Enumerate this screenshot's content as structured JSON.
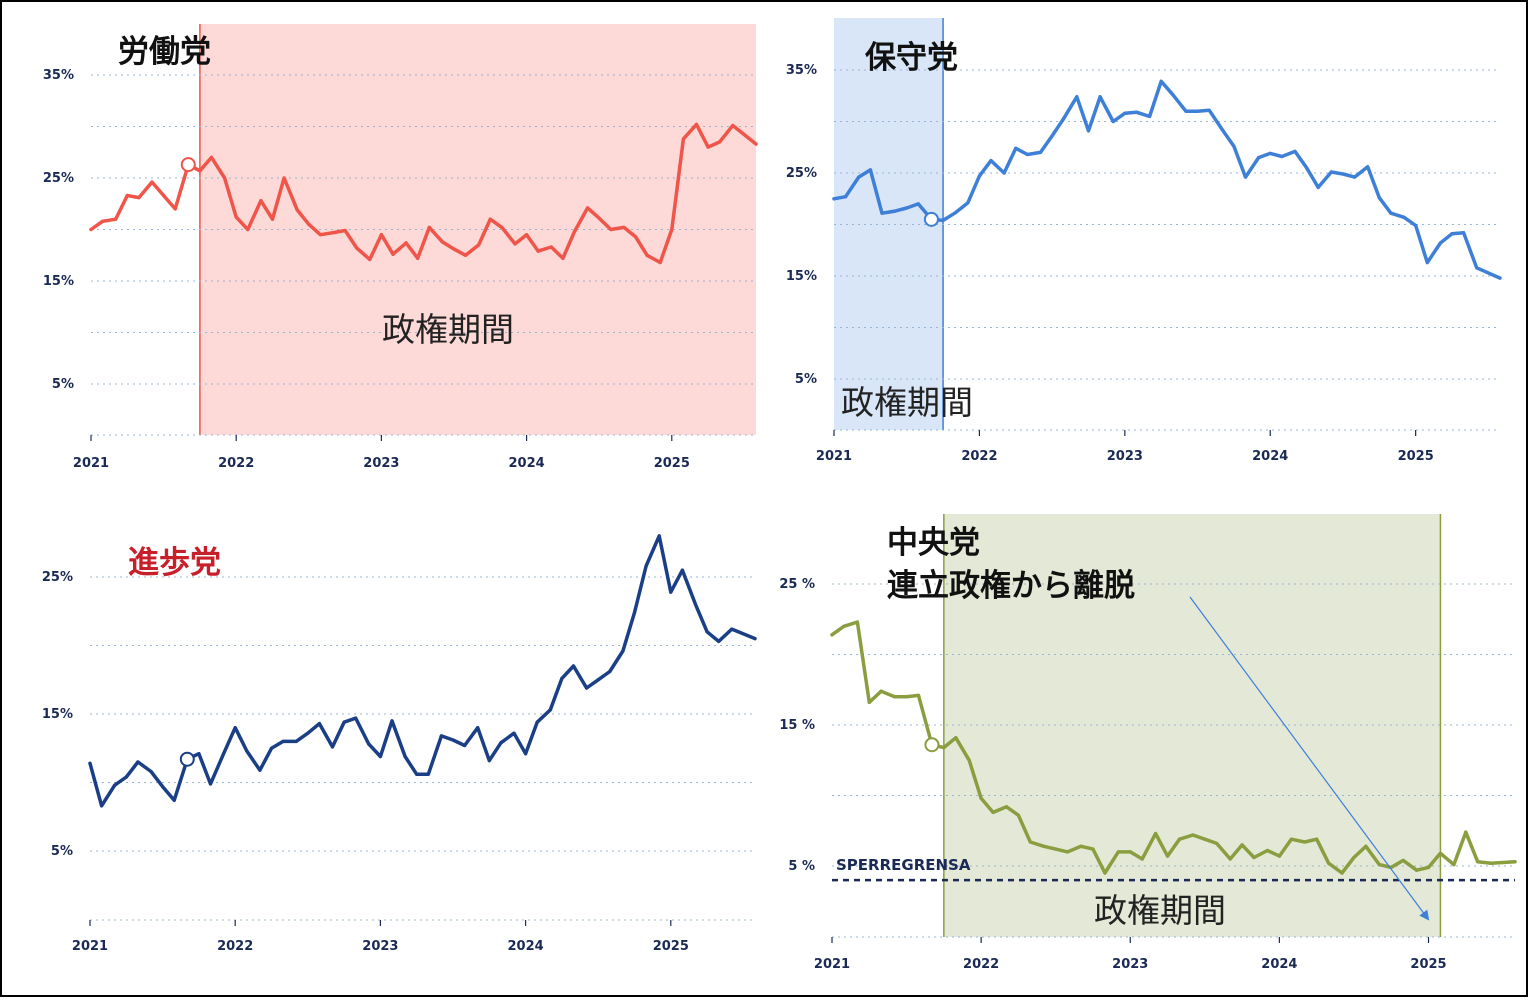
{
  "panels": [
    {
      "title": "労働党",
      "title_color": "#111111",
      "period_label": "政権期間",
      "line_color": "#f0554a",
      "shade_color": "#fdd9d7",
      "line_marker_color": "#f0554a",
      "chart_data": {
        "type": "line",
        "x_ticks": [
          "2021",
          "2022",
          "2023",
          "2024",
          "2025"
        ],
        "y_ticks": [
          "5%",
          "15%",
          "25%",
          "35%"
        ],
        "ylim": [
          -5,
          40
        ],
        "xlim": [
          2021,
          2025.58
        ],
        "government_period": [
          2021.75,
          2025.58
        ],
        "marker_index": 8,
        "grid": true,
        "x": [
          2021.0,
          2021.08,
          2021.17,
          2021.25,
          2021.33,
          2021.42,
          2021.5,
          2021.58,
          2021.67,
          2021.75,
          2021.83,
          2021.92,
          2022.0,
          2022.08,
          2022.17,
          2022.25,
          2022.33,
          2022.42,
          2022.5,
          2022.58,
          2022.67,
          2022.75,
          2022.83,
          2022.92,
          2023.0,
          2023.08,
          2023.17,
          2023.25,
          2023.33,
          2023.42,
          2023.5,
          2023.58,
          2023.67,
          2023.75,
          2023.83,
          2023.92,
          2024.0,
          2024.08,
          2024.17,
          2024.25,
          2024.33,
          2024.42,
          2024.5,
          2024.58,
          2024.67,
          2024.75,
          2024.83,
          2024.92,
          2025.0,
          2025.08,
          2025.17,
          2025.25,
          2025.33,
          2025.42,
          2025.58
        ],
        "values": [
          20,
          20.8,
          21,
          23.3,
          23.1,
          24.6,
          23.3,
          22,
          26.3,
          25.7,
          27,
          25,
          21.2,
          20,
          22.8,
          21,
          25,
          21.9,
          20.5,
          19.5,
          19.7,
          19.9,
          18.2,
          17.1,
          19.5,
          17.6,
          18.7,
          17.2,
          20.2,
          18.8,
          18.1,
          17.5,
          18.5,
          21,
          20.2,
          18.6,
          19.5,
          17.9,
          18.3,
          17.2,
          19.8,
          22.1,
          21.1,
          20,
          20.2,
          19.3,
          17.5,
          16.8,
          20,
          28.8,
          30.2,
          28,
          28.5,
          30.1,
          28.3
        ]
      }
    },
    {
      "title": "保守党",
      "title_color": "#111111",
      "period_label": "政権期間",
      "line_color": "#3e7fd8",
      "shade_color": "#d8e6f8",
      "line_marker_color": "#3e7fd8",
      "chart_data": {
        "type": "line",
        "x_ticks": [
          "2021",
          "2022",
          "2023",
          "2024",
          "2025"
        ],
        "y_ticks": [
          "5%",
          "15%",
          "25%",
          "35%"
        ],
        "ylim": [
          0,
          40
        ],
        "xlim": [
          2021,
          2025.58
        ],
        "government_period": [
          2021,
          2021.75
        ],
        "marker_index": 8,
        "grid": true,
        "x": [
          2021.0,
          2021.08,
          2021.17,
          2021.25,
          2021.33,
          2021.42,
          2021.5,
          2021.58,
          2021.67,
          2021.75,
          2021.83,
          2021.92,
          2022.0,
          2022.08,
          2022.17,
          2022.25,
          2022.33,
          2022.42,
          2022.5,
          2022.58,
          2022.67,
          2022.75,
          2022.83,
          2022.92,
          2023.0,
          2023.08,
          2023.17,
          2023.25,
          2023.33,
          2023.42,
          2023.5,
          2023.58,
          2023.67,
          2023.75,
          2023.83,
          2023.92,
          2024.0,
          2024.08,
          2024.17,
          2024.25,
          2024.33,
          2024.42,
          2024.5,
          2024.58,
          2024.67,
          2024.75,
          2024.83,
          2024.92,
          2025.0,
          2025.08,
          2025.17,
          2025.25,
          2025.33,
          2025.42,
          2025.58
        ],
        "values": [
          22.5,
          22.7,
          24.6,
          25.3,
          21.1,
          21.3,
          21.6,
          22,
          20.5,
          20.4,
          21.1,
          22.1,
          24.7,
          26.2,
          25,
          27.4,
          26.8,
          27,
          28.6,
          30.3,
          32.4,
          29.1,
          32.4,
          30,
          30.8,
          30.9,
          30.5,
          33.9,
          32.6,
          31,
          31,
          31.1,
          29.2,
          27.6,
          24.6,
          26.5,
          26.9,
          26.6,
          27.1,
          25.5,
          23.6,
          25.1,
          24.9,
          24.6,
          25.6,
          22.6,
          21.1,
          20.7,
          19.9,
          16.3,
          18.2,
          19.1,
          19.2,
          15.8,
          14.8
        ]
      }
    },
    {
      "title": "進歩党",
      "title_color": "#c8202a",
      "line_color": "#1a3f86",
      "line_marker_color": "#1a3f86",
      "chart_data": {
        "type": "line",
        "x_ticks": [
          "2021",
          "2022",
          "2023",
          "2024",
          "2025"
        ],
        "y_ticks": [
          "5%",
          "15%",
          "25%"
        ],
        "ylim": [
          0,
          30
        ],
        "xlim": [
          2021,
          2025.58
        ],
        "marker_index": 8,
        "grid": true,
        "x": [
          2021.0,
          2021.08,
          2021.17,
          2021.25,
          2021.33,
          2021.42,
          2021.5,
          2021.58,
          2021.67,
          2021.75,
          2021.83,
          2021.92,
          2022.0,
          2022.08,
          2022.17,
          2022.25,
          2022.33,
          2022.42,
          2022.5,
          2022.58,
          2022.67,
          2022.75,
          2022.83,
          2022.92,
          2023.0,
          2023.08,
          2023.17,
          2023.25,
          2023.33,
          2023.42,
          2023.5,
          2023.58,
          2023.67,
          2023.75,
          2023.83,
          2023.92,
          2024.0,
          2024.08,
          2024.17,
          2024.25,
          2024.33,
          2024.42,
          2024.5,
          2024.58,
          2024.67,
          2024.75,
          2024.83,
          2024.92,
          2025.0,
          2025.08,
          2025.17,
          2025.25,
          2025.33,
          2025.42,
          2025.58
        ],
        "values": [
          11.4,
          8.3,
          9.8,
          10.4,
          11.5,
          10.8,
          9.7,
          8.7,
          11.7,
          12.1,
          9.9,
          12.1,
          14,
          12.3,
          10.9,
          12.5,
          13,
          13,
          13.6,
          14.3,
          12.6,
          14.4,
          14.7,
          12.8,
          11.9,
          14.5,
          11.9,
          10.6,
          10.6,
          13.4,
          13.1,
          12.7,
          14,
          11.6,
          12.9,
          13.6,
          12.1,
          14.4,
          15.3,
          17.6,
          18.5,
          16.9,
          17.5,
          18.1,
          19.6,
          22.4,
          25.8,
          28,
          23.9,
          25.5,
          23,
          21,
          20.3,
          21.2,
          20.5
        ]
      }
    },
    {
      "title": "中央党",
      "subtitle": "連立政権から離脱",
      "title_color": "#111111",
      "period_label": "政権期間",
      "threshold_label": "SPERREGRENSA",
      "line_color": "#8a9e40",
      "shade_color": "#e4e8d6",
      "line_marker_color": "#8a9e40",
      "chart_data": {
        "type": "line",
        "x_ticks": [
          "2021",
          "2022",
          "2023",
          "2024",
          "2025"
        ],
        "y_ticks": [
          "5 %",
          "15 %",
          "25 %"
        ],
        "ylim": [
          0,
          30
        ],
        "xlim": [
          2021,
          2025.58
        ],
        "government_period": [
          2021.75,
          2025.08
        ],
        "threshold": 4,
        "marker_index": 8,
        "grid": true,
        "x": [
          2021.0,
          2021.08,
          2021.17,
          2021.25,
          2021.33,
          2021.42,
          2021.5,
          2021.58,
          2021.67,
          2021.75,
          2021.83,
          2021.92,
          2022.0,
          2022.08,
          2022.17,
          2022.25,
          2022.33,
          2022.42,
          2022.5,
          2022.58,
          2022.67,
          2022.75,
          2022.83,
          2022.92,
          2023.0,
          2023.08,
          2023.17,
          2023.25,
          2023.33,
          2023.42,
          2023.5,
          2023.58,
          2023.67,
          2023.75,
          2023.83,
          2023.92,
          2024.0,
          2024.08,
          2024.17,
          2024.25,
          2024.33,
          2024.42,
          2024.5,
          2024.58,
          2024.67,
          2024.75,
          2024.83,
          2024.92,
          2025.0,
          2025.08,
          2025.17,
          2025.25,
          2025.33,
          2025.42,
          2025.58
        ],
        "values": [
          21.4,
          22,
          22.3,
          16.6,
          17.4,
          17,
          17,
          17.1,
          13.6,
          13.4,
          14.1,
          12.5,
          9.8,
          8.8,
          9.2,
          8.6,
          6.7,
          6.4,
          6.2,
          6,
          6.4,
          6.2,
          4.5,
          6,
          6,
          5.5,
          7.3,
          5.7,
          6.9,
          7.2,
          6.9,
          6.6,
          5.5,
          6.5,
          5.6,
          6.1,
          5.7,
          6.9,
          6.7,
          6.9,
          5.2,
          4.5,
          5.6,
          6.4,
          5.1,
          4.9,
          5.4,
          4.7,
          4.9,
          5.9,
          5.1,
          7.4,
          5.3,
          5.2,
          5.3
        ]
      }
    }
  ]
}
